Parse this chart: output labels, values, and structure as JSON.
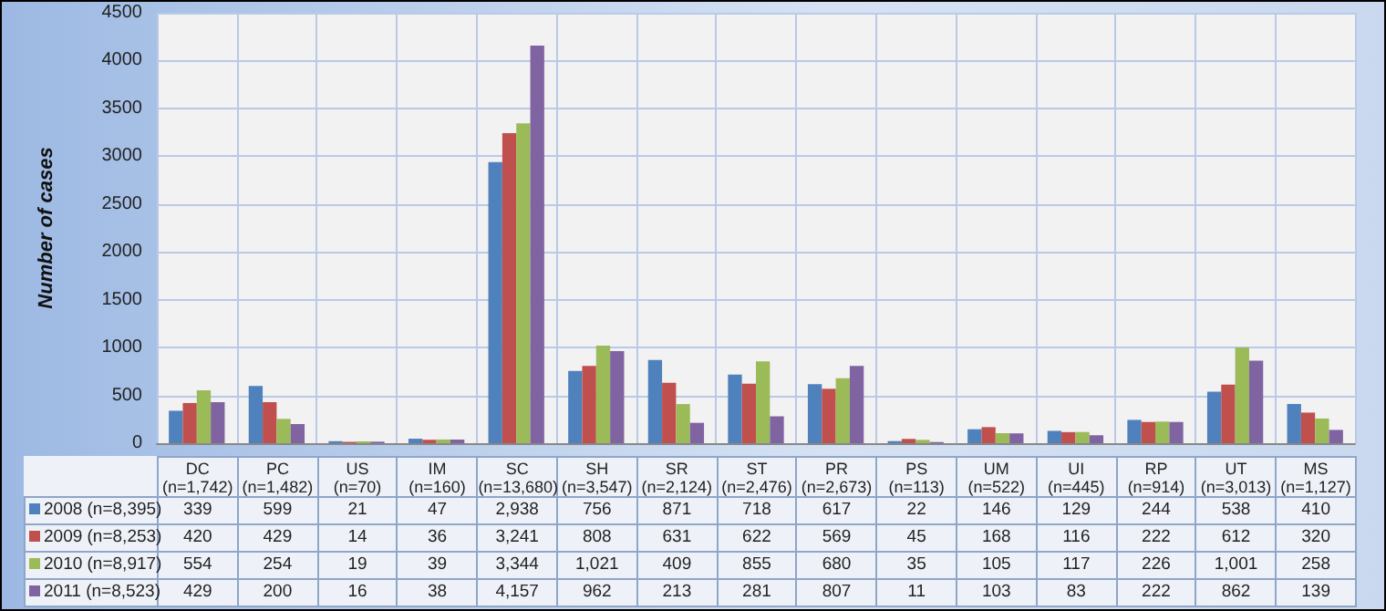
{
  "chart_data": {
    "type": "bar",
    "ylabel": "Number of cases",
    "categories": [
      "DC\n(n=1,742)",
      "PC\n(n=1,482)",
      "US\n(n=70)",
      "IM\n(n=160)",
      "SC\n(n=13,680)",
      "SH\n(n=3,547)",
      "SR\n(n=2,124)",
      "ST\n(n=2,476)",
      "PR\n(n=2,673)",
      "PS\n(n=113)",
      "UM\n(n=522)",
      "UI\n(n=445)",
      "RP\n(n=914)",
      "UT\n(n=3,013)",
      "MS\n(n=1,127)"
    ],
    "series": [
      {
        "name": "2008 (n=8,395)",
        "color": "#4f81bd",
        "values": [
          339,
          599,
          21,
          47,
          2938,
          756,
          871,
          718,
          617,
          22,
          146,
          129,
          244,
          538,
          410
        ],
        "value_labels": [
          "339",
          "599",
          "21",
          "47",
          "2,938",
          "756",
          "871",
          "718",
          "617",
          "22",
          "146",
          "129",
          "244",
          "538",
          "410"
        ]
      },
      {
        "name": "2009 (n=8,253)",
        "color": "#c0504d",
        "values": [
          420,
          429,
          14,
          36,
          3241,
          808,
          631,
          622,
          569,
          45,
          168,
          116,
          222,
          612,
          320
        ],
        "value_labels": [
          "420",
          "429",
          "14",
          "36",
          "3,241",
          "808",
          "631",
          "622",
          "569",
          "45",
          "168",
          "116",
          "222",
          "612",
          "320"
        ]
      },
      {
        "name": "2010 (n=8,917)",
        "color": "#9bbb59",
        "values": [
          554,
          254,
          19,
          39,
          3344,
          1021,
          409,
          855,
          680,
          35,
          105,
          117,
          226,
          1001,
          258
        ],
        "value_labels": [
          "554",
          "254",
          "19",
          "39",
          "3,344",
          "1,021",
          "409",
          "855",
          "680",
          "35",
          "105",
          "117",
          "226",
          "1,001",
          "258"
        ]
      },
      {
        "name": "2011 (n=8,523)",
        "color": "#8064a2",
        "values": [
          429,
          200,
          16,
          38,
          4157,
          962,
          213,
          281,
          807,
          11,
          103,
          83,
          222,
          862,
          139
        ],
        "value_labels": [
          "429",
          "200",
          "16",
          "38",
          "4,157",
          "962",
          "213",
          "281",
          "807",
          "11",
          "103",
          "83",
          "222",
          "862",
          "139"
        ]
      }
    ],
    "ylim": [
      0,
      4500
    ],
    "yticks": [
      0,
      500,
      1000,
      1500,
      2000,
      2500,
      3000,
      3500,
      4000,
      4500
    ],
    "grid": true,
    "legend": "bottom"
  }
}
